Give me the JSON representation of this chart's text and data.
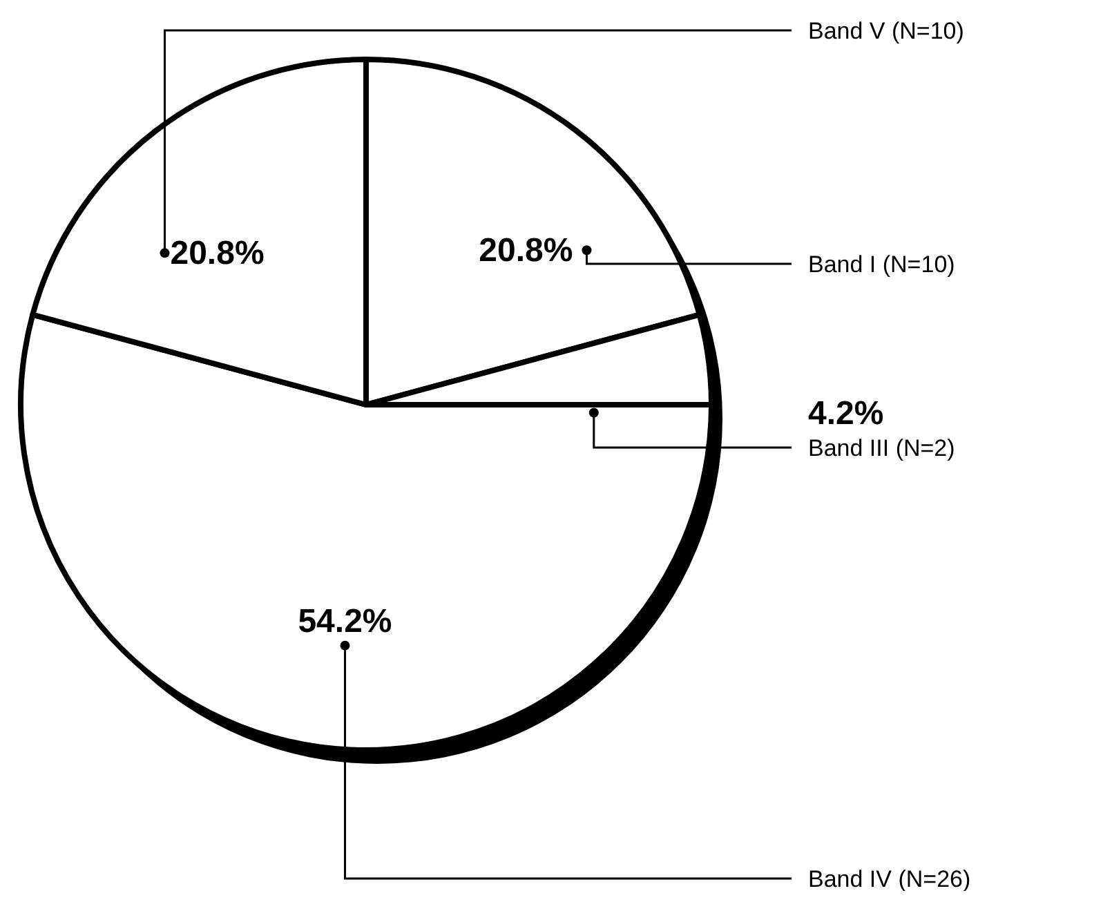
{
  "chart_data": {
    "type": "pie",
    "categories": [
      "Band I (N=10)",
      "Band III (N=2)",
      "Band IV (N=26)",
      "Band V (N=10)"
    ],
    "values": [
      20.8,
      4.2,
      54.2,
      20.8
    ],
    "colors": [
      "#ffffff",
      "#ffffff",
      "#ffffff",
      "#ffffff"
    ],
    "value_labels": [
      "20.8%",
      "4.2%",
      "54.2%",
      "20.8%"
    ]
  }
}
